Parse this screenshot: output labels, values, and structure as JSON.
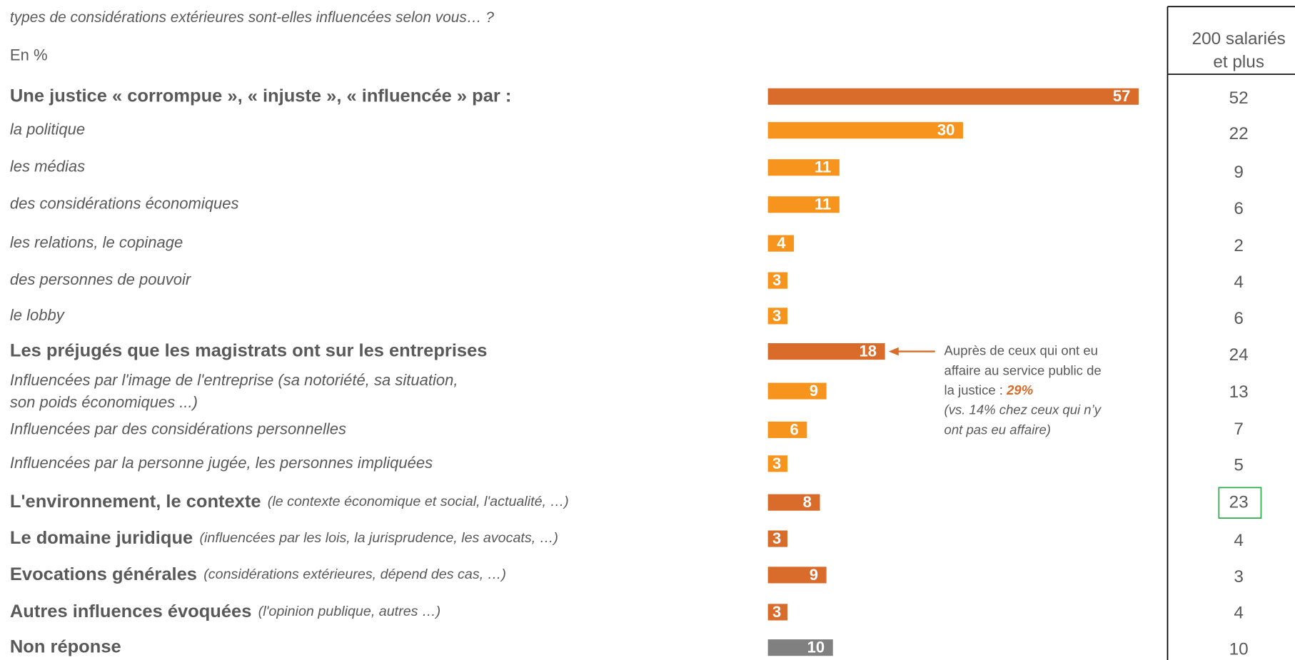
{
  "chart_data": {
    "type": "bar",
    "subtitle": "types de considérations extérieures sont-elles influencées selon vous… ?",
    "unit_label": "En %",
    "categories": [
      "Une justice « corrompue », « injuste », « influencée » par :",
      "la politique",
      "les médias",
      "des considérations économiques",
      "les relations, le copinage",
      "des personnes de pouvoir",
      "le lobby",
      "Les préjugés que les magistrats ont sur les entreprises",
      [
        "Influencées par l'image de l'entreprise (sa notoriété, sa situation,",
        "son poids économiques ...)"
      ],
      "Influencées par des considérations personnelles",
      "Influencées par la personne jugée, les personnes impliquées",
      "L'environnement, le contexte",
      "Le domaine juridique",
      "Evocations générales",
      "Autres influences évoquées",
      "Non réponse"
    ],
    "notes": [
      null,
      null,
      null,
      null,
      null,
      null,
      null,
      null,
      null,
      null,
      null,
      "(le contexte économique et social, l'actualité, …)",
      "(influencées par les lois, la jurisprudence, les avocats, …)",
      "(considérations extérieures, dépend des cas, …)",
      "(l'opinion publique, autres …)",
      null
    ],
    "styles": [
      "bold",
      "italic",
      "italic",
      "italic",
      "italic",
      "italic",
      "italic",
      "bold",
      "italic",
      "italic",
      "italic",
      "bold",
      "bold",
      "bold",
      "bold",
      "bold"
    ],
    "values": [
      57,
      30,
      11,
      11,
      4,
      3,
      3,
      18,
      9,
      6,
      3,
      8,
      3,
      9,
      3,
      10
    ],
    "colors": [
      "#d96b2b",
      "#f7941d",
      "#f7941d",
      "#f7941d",
      "#f7941d",
      "#f7941d",
      "#f7941d",
      "#d96b2b",
      "#f7941d",
      "#f7941d",
      "#f7941d",
      "#d96b2b",
      "#d96b2b",
      "#d96b2b",
      "#d96b2b",
      "#808080"
    ],
    "annotation": {
      "target": 7,
      "lines": [
        "Auprès de ceux qui ont eu",
        "affaire au service public de",
        "la justice : "
      ],
      "highlight": "29%",
      "note_lines": [
        "(vs. 14% chez ceux qui n’y",
        "ont pas eu affaire)"
      ]
    },
    "column": {
      "header": [
        "200 salariés",
        "et plus"
      ],
      "values": [
        52,
        22,
        9,
        6,
        2,
        4,
        6,
        24,
        13,
        7,
        5,
        23,
        4,
        3,
        4,
        10
      ],
      "highlight": 11
    }
  }
}
